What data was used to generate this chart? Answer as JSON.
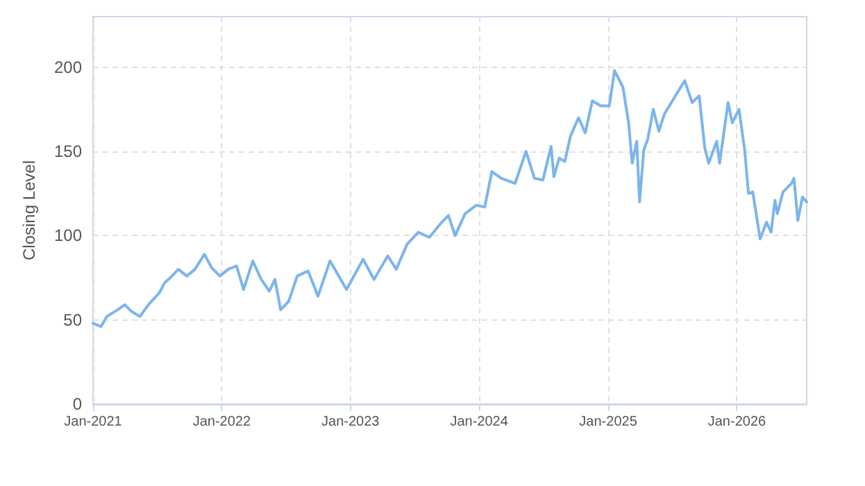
{
  "chart_data": {
    "type": "line",
    "ylabel": "Closing Level",
    "x": [
      "2021-01-01",
      "2021-01-24",
      "2021-02-09",
      "2021-03-12",
      "2021-04-01",
      "2021-04-20",
      "2021-05-14",
      "2021-06-07",
      "2021-07-08",
      "2021-07-23",
      "2021-08-08",
      "2021-08-31",
      "2021-09-24",
      "2021-10-17",
      "2021-11-13",
      "2021-12-03",
      "2021-12-27",
      "2022-01-19",
      "2022-02-12",
      "2022-03-04",
      "2022-03-30",
      "2022-04-23",
      "2022-05-16",
      "2022-06-01",
      "2022-06-17",
      "2022-07-10",
      "2022-08-03",
      "2022-09-03",
      "2022-10-01",
      "2022-11-04",
      "2022-12-21",
      "2023-02-06",
      "2023-03-09",
      "2023-04-17",
      "2023-05-11",
      "2023-06-11",
      "2023-07-12",
      "2023-08-13",
      "2023-09-13",
      "2023-10-06",
      "2023-10-25",
      "2023-11-22",
      "2023-12-24",
      "2024-01-17",
      "2024-02-06",
      "2024-03-04",
      "2024-04-12",
      "2024-05-13",
      "2024-06-06",
      "2024-06-30",
      "2024-07-23",
      "2024-07-31",
      "2024-08-15",
      "2024-08-31",
      "2024-09-16",
      "2024-10-09",
      "2024-10-28",
      "2024-11-17",
      "2024-12-11",
      "2025-01-04",
      "2025-01-19",
      "2025-02-12",
      "2025-02-28",
      "2025-03-10",
      "2025-03-23",
      "2025-03-31",
      "2025-04-12",
      "2025-04-23",
      "2025-05-09",
      "2025-05-25",
      "2025-06-09",
      "2025-07-02",
      "2025-08-06",
      "2025-08-27",
      "2025-09-16",
      "2025-10-02",
      "2025-10-13",
      "2025-11-05",
      "2025-11-13",
      "2025-12-07",
      "2025-12-19",
      "2026-01-07",
      "2026-01-23",
      "2026-02-03",
      "2026-02-15",
      "2026-03-08",
      "2026-03-26",
      "2026-04-08",
      "2026-04-19",
      "2026-04-26",
      "2026-05-12",
      "2026-06-05",
      "2026-06-12",
      "2026-06-23",
      "2026-07-06",
      "2026-07-18"
    ],
    "series": [
      {
        "color": "#7cb5ec",
        "values": [
          48,
          46,
          52,
          56,
          59,
          55,
          52,
          59,
          66,
          72,
          75,
          80,
          76,
          80,
          89,
          81,
          76,
          80,
          82,
          68,
          85,
          74,
          67,
          74,
          56,
          61,
          76,
          79,
          64,
          85,
          68,
          86,
          74,
          88,
          80,
          95,
          102,
          99,
          107,
          112,
          100,
          113,
          118,
          117,
          138,
          134,
          131,
          150,
          134,
          133,
          153,
          135,
          146,
          144,
          159,
          170,
          161,
          180,
          177,
          177,
          198,
          188,
          167,
          143,
          156,
          120,
          151,
          157,
          175,
          162,
          172,
          180,
          192,
          179,
          183,
          152,
          143,
          156,
          143,
          179,
          167,
          175,
          151,
          125,
          126,
          98,
          108,
          102,
          121,
          113,
          126,
          131,
          134,
          109,
          123,
          120
        ]
      }
    ],
    "xlim": [
      "2021-01-01",
      "2026-07-18"
    ],
    "xticks": [
      {
        "value": "2021-01-01",
        "label": "Jan-2021"
      },
      {
        "value": "2022-01-01",
        "label": "Jan-2022"
      },
      {
        "value": "2023-01-01",
        "label": "Jan-2023"
      },
      {
        "value": "2024-01-01",
        "label": "Jan-2024"
      },
      {
        "value": "2025-01-01",
        "label": "Jan-2025"
      },
      {
        "value": "2026-01-01",
        "label": "Jan-2026"
      }
    ],
    "ylim": [
      0,
      230
    ],
    "yticks": [
      0,
      50,
      100,
      150,
      200
    ],
    "grid": true,
    "marker": "none",
    "line_style": "solid"
  }
}
